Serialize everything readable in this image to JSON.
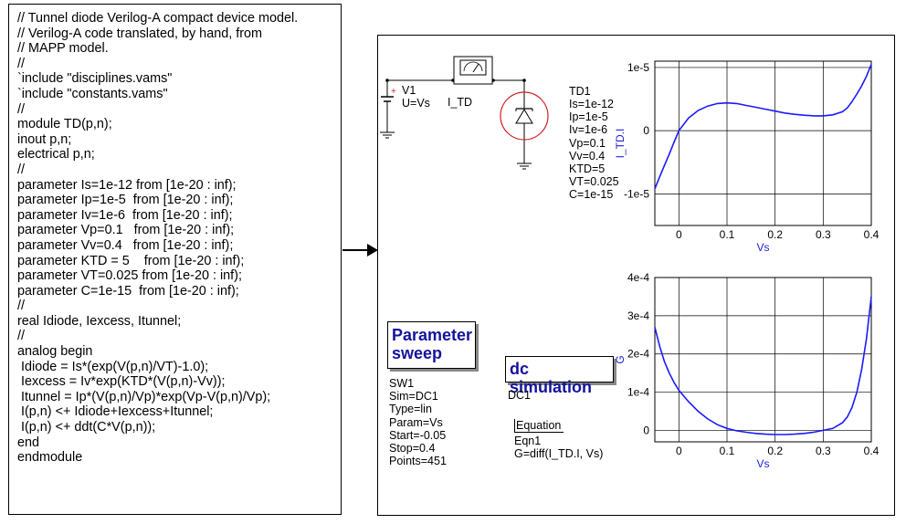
{
  "code": {
    "lines": [
      "// Tunnel diode Verilog-A compact device model.",
      "// Verilog-A code translated, by hand, from",
      "// MAPP model.",
      "//",
      "`include \"disciplines.vams\"",
      "`include \"constants.vams\"",
      "//",
      "module TD(p,n);",
      "inout p,n;",
      "electrical p,n;",
      "//",
      "parameter Is=1e-12 from [1e-20 : inf);",
      "parameter Ip=1e-5  from [1e-20 : inf);",
      "parameter Iv=1e-6  from [1e-20 : inf);",
      "parameter Vp=0.1   from [1e-20 : inf);",
      "parameter Vv=0.4   from [1e-20 : inf);",
      "parameter KTD = 5    from [1e-20 : inf);",
      "parameter VT=0.025 from [1e-20 : inf);",
      "parameter C=1e-15  from [1e-20 : inf);",
      "//",
      "real Idiode, Iexcess, Itunnel;",
      "//",
      "analog begin",
      " Idiode = Is*(exp(V(p,n)/VT)-1.0);",
      " Iexcess = Iv*exp(KTD*(V(p,n)-Vv));",
      " Itunnel = Ip*(V(p,n)/Vp)*exp(Vp-V(p,n)/Vp);",
      " I(p,n) <+ Idiode+Iexcess+Itunnel;",
      " I(p,n) <+ ddt(C*V(p,n));",
      "end",
      "endmodule"
    ]
  },
  "schematic": {
    "source": {
      "name": "V1",
      "value": "U=Vs",
      "plus": "+"
    },
    "ammeter": {
      "name": "I_TD"
    },
    "diode": {
      "name": "TD1",
      "params": [
        "Is=1e-12",
        "Ip=1e-5",
        "Iv=1e-6",
        "Vp=0.1",
        "Vv=0.4",
        "KTD=5",
        "VT=0.025",
        "C=1e-15"
      ]
    },
    "param_sweep": {
      "title_line1": "Parameter",
      "title_line2": "sweep",
      "props": [
        "SW1",
        "Sim=DC1",
        "Type=lin",
        "Param=Vs",
        "Start=-0.05",
        "Stop=0.4",
        "Points=451"
      ]
    },
    "dc_sim": {
      "title": "dc simulation",
      "name": "DC1"
    },
    "equation": {
      "title": "Equation",
      "name": "Eqn1",
      "expr": "G=diff(I_TD.I, Vs)"
    }
  },
  "colors": {
    "curve": "#1a1aff",
    "axis_label": "#2020d8",
    "title": "#13139e",
    "diode": "#d42020",
    "arrow": "#000000"
  },
  "chart_data": [
    {
      "type": "line",
      "ylabel": "I_TD.I",
      "xlabel": "Vs",
      "xlim": [
        -0.05,
        0.4
      ],
      "ylim": [
        -1.5e-05,
        1.1e-05
      ],
      "xticks": [
        "0",
        "0.1",
        "0.2",
        "0.3",
        "0.4"
      ],
      "yticks": [
        "1e-5",
        "0",
        "-1e-5"
      ],
      "grid": true,
      "series": [
        {
          "x": [
            -0.05,
            -0.04,
            -0.03,
            -0.02,
            -0.01,
            0.0,
            0.02,
            0.04,
            0.06,
            0.08,
            0.1,
            0.12,
            0.14,
            0.16,
            0.18,
            0.2,
            0.22,
            0.24,
            0.26,
            0.28,
            0.3,
            0.32,
            0.34,
            0.35,
            0.36,
            0.37,
            0.38,
            0.39,
            0.4
          ],
          "y": [
            -9.2e-06,
            -7.3e-06,
            -5.5e-06,
            -3.7e-06,
            -1.8e-06,
            0,
            2e-06,
            3.2e-06,
            3.9e-06,
            4.3e-06,
            4.4e-06,
            4.3e-06,
            4e-06,
            3.7e-06,
            3.4e-06,
            3.1e-06,
            2.8e-06,
            2.6e-06,
            2.45e-06,
            2.35e-06,
            2.35e-06,
            2.5e-06,
            3e-06,
            3.6e-06,
            4.6e-06,
            5.8e-06,
            7.1e-06,
            8.6e-06,
            1.05e-05
          ]
        }
      ]
    },
    {
      "type": "line",
      "ylabel": "G",
      "xlabel": "Vs",
      "xlim": [
        -0.05,
        0.4
      ],
      "ylim": [
        -3e-05,
        0.0004
      ],
      "xticks": [
        "0",
        "0.1",
        "0.2",
        "0.3",
        "0.4"
      ],
      "yticks": [
        "4e-4",
        "3e-4",
        "2e-4",
        "1e-4",
        "0"
      ],
      "grid": true,
      "series": [
        {
          "x": [
            -0.05,
            -0.04,
            -0.03,
            -0.02,
            -0.01,
            0.0,
            0.02,
            0.04,
            0.06,
            0.08,
            0.1,
            0.12,
            0.14,
            0.16,
            0.18,
            0.2,
            0.22,
            0.24,
            0.26,
            0.28,
            0.3,
            0.32,
            0.34,
            0.35,
            0.36,
            0.37,
            0.38,
            0.39,
            0.4
          ],
          "y": [
            0.00027,
            0.00022,
            0.00018,
            0.00015,
            0.000125,
            0.000105,
            7.5e-05,
            5e-05,
            3e-05,
            1.5e-05,
            5e-06,
            -1e-06,
            -5e-06,
            -8e-06,
            -1e-05,
            -1.1e-05,
            -1.1e-05,
            -1e-05,
            -8e-06,
            -5e-06,
            0,
            5e-06,
            2e-05,
            3.5e-05,
            6e-05,
            0.0001,
            0.00016,
            0.00024,
            0.00035
          ]
        }
      ]
    }
  ]
}
